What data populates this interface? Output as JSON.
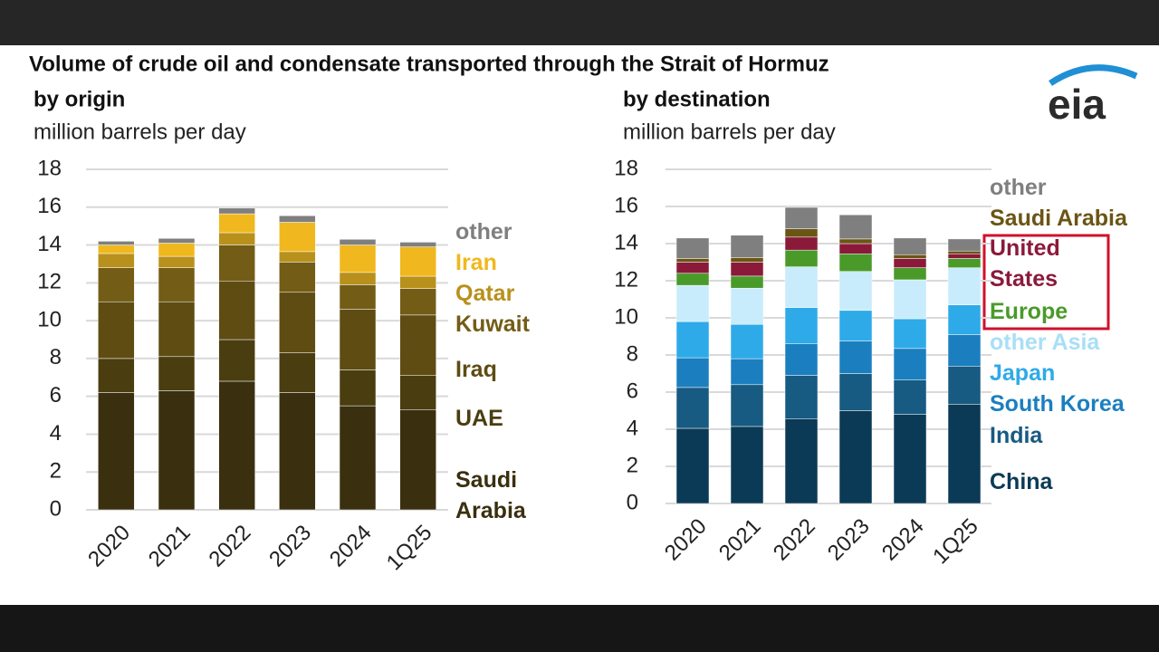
{
  "title": "Volume of crude oil and condensate transported through the Strait of Hormuz",
  "logo": "eia",
  "chart_data": [
    {
      "type": "bar",
      "stacked": true,
      "subtitle": "by origin",
      "y_label": "million barrels per day",
      "categories": [
        "2020",
        "2021",
        "2022",
        "2023",
        "2024",
        "1Q25"
      ],
      "ylim": [
        0,
        18
      ],
      "yticks": [
        0,
        2,
        4,
        6,
        8,
        10,
        12,
        14,
        16,
        18
      ],
      "grid": true,
      "series": [
        {
          "name": "Saudi Arabia",
          "color": "#3a3010",
          "values": [
            6.2,
            6.3,
            6.8,
            6.2,
            5.5,
            5.3
          ]
        },
        {
          "name": "UAE",
          "color": "#4a3d10",
          "values": [
            1.8,
            1.8,
            2.2,
            2.1,
            1.9,
            1.8
          ]
        },
        {
          "name": "Iraq",
          "color": "#5e4c13",
          "values": [
            3.0,
            2.9,
            3.1,
            3.2,
            3.2,
            3.2
          ]
        },
        {
          "name": "Kuwait",
          "color": "#735c16",
          "values": [
            1.8,
            1.8,
            1.9,
            1.6,
            1.3,
            1.4
          ]
        },
        {
          "name": "Qatar",
          "color": "#b8901c",
          "values": [
            0.75,
            0.6,
            0.65,
            0.55,
            0.65,
            0.65
          ]
        },
        {
          "name": "Iran",
          "color": "#f0b81e",
          "values": [
            0.45,
            0.7,
            1.0,
            1.55,
            1.45,
            1.55
          ]
        },
        {
          "name": "other",
          "color": "#7f7f7f",
          "values": [
            0.2,
            0.25,
            0.3,
            0.35,
            0.3,
            0.25
          ]
        }
      ]
    },
    {
      "type": "bar",
      "stacked": true,
      "subtitle": "by destination",
      "y_label": "million barrels per day",
      "categories": [
        "2020",
        "2021",
        "2022",
        "2023",
        "2024",
        "1Q25"
      ],
      "ylim": [
        0,
        18
      ],
      "yticks": [
        0,
        2,
        4,
        6,
        8,
        10,
        12,
        14,
        16,
        18
      ],
      "grid": true,
      "series": [
        {
          "name": "China",
          "color": "#0b3a56",
          "values": [
            4.05,
            4.15,
            4.55,
            5.0,
            4.8,
            5.35
          ]
        },
        {
          "name": "India",
          "color": "#175a82",
          "values": [
            2.2,
            2.25,
            2.35,
            2.0,
            1.85,
            2.05
          ]
        },
        {
          "name": "South Korea",
          "color": "#1b7fbf",
          "values": [
            1.6,
            1.4,
            1.7,
            1.75,
            1.7,
            1.7
          ]
        },
        {
          "name": "Japan",
          "color": "#2eaae8",
          "values": [
            1.95,
            1.85,
            1.95,
            1.65,
            1.6,
            1.6
          ]
        },
        {
          "name": "other Asia",
          "color": "#c8ecfb",
          "values": [
            1.95,
            1.95,
            2.2,
            2.1,
            2.1,
            2.0
          ]
        },
        {
          "name": "Europe",
          "color": "#4a9a2a",
          "values": [
            0.65,
            0.65,
            0.9,
            0.95,
            0.65,
            0.5
          ]
        },
        {
          "name": "United States",
          "color": "#8b1a3a",
          "values": [
            0.6,
            0.75,
            0.7,
            0.55,
            0.5,
            0.25
          ]
        },
        {
          "name": "Saudi Arabia",
          "color": "#6b5515",
          "values": [
            0.2,
            0.25,
            0.45,
            0.25,
            0.2,
            0.15
          ]
        },
        {
          "name": "other",
          "color": "#7f7f7f",
          "values": [
            1.1,
            1.2,
            1.15,
            1.3,
            0.9,
            0.65
          ]
        }
      ]
    }
  ]
}
